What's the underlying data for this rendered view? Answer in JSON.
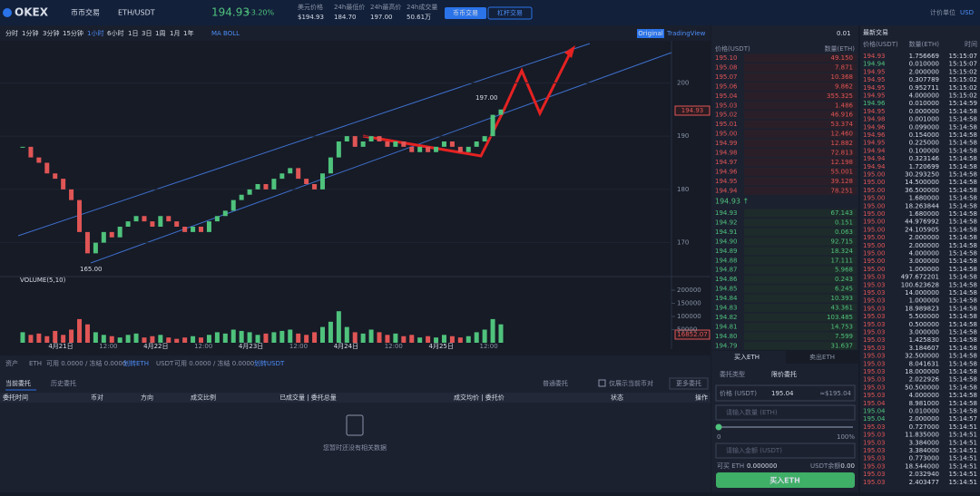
{
  "header": {
    "logo": "OKEX",
    "market_type": "币币交易",
    "pair": "ETH/USDT",
    "last_price": "194.93",
    "change": "+3.20%",
    "stats": [
      {
        "label": "美元价格",
        "value": "$194.93"
      },
      {
        "label": "24h最低价",
        "value": "184.70"
      },
      {
        "label": "24h最高价",
        "value": "197.00"
      },
      {
        "label": "24h成交量",
        "value": "50.61万"
      }
    ],
    "tabs": [
      "币币交易",
      "杠杆交易"
    ],
    "unit_label": "计价单位",
    "unit": "USD"
  },
  "toolbar": {
    "periods": [
      "分时",
      "1分钟",
      "3分钟",
      "15分钟",
      "1小时",
      "6小时",
      "1日",
      "3日",
      "1周",
      "1月",
      "1年"
    ],
    "indicators": "MA BOLL",
    "views": [
      "Original",
      "TradingView"
    ]
  },
  "chart_data": {
    "type": "candlestick",
    "closes": [
      188,
      186,
      185,
      183,
      182,
      180,
      178,
      172,
      168,
      170,
      172,
      171,
      173,
      174,
      175,
      174,
      173,
      175,
      174,
      173,
      172,
      173,
      172,
      174,
      175,
      176,
      178,
      179,
      180,
      181,
      180,
      182,
      183,
      184,
      182,
      181,
      180,
      183,
      186,
      189,
      190,
      188,
      189,
      190,
      189,
      188,
      189,
      188,
      187,
      188,
      187,
      188,
      189,
      188,
      187,
      188,
      189,
      190,
      194,
      195
    ],
    "volumes": [
      40000,
      30000,
      35000,
      25000,
      45000,
      30000,
      50000,
      90000,
      70000,
      40000,
      30000,
      25000,
      20000,
      30000,
      35000,
      20000,
      25000,
      30000,
      20000,
      15000,
      20000,
      25000,
      20000,
      30000,
      40000,
      35000,
      50000,
      45000,
      40000,
      30000,
      35000,
      40000,
      45000,
      50000,
      35000,
      30000,
      40000,
      60000,
      80000,
      120000,
      60000,
      40000,
      35000,
      50000,
      40000,
      30000,
      35000,
      25000,
      30000,
      20000,
      25000,
      20000,
      30000,
      25000,
      20000,
      25000,
      40000,
      50000,
      90000,
      70000
    ],
    "up_color": "#4fc27c",
    "down_color": "#e05555",
    "ylim": [
      165,
      197
    ],
    "yticks": [
      170,
      180,
      190,
      200
    ],
    "vol_label": "VOLUME(5,10)",
    "vol_ylim": [
      0,
      200000
    ],
    "vol_yticks": [
      50000,
      100000,
      150000,
      200000
    ],
    "x_labels": [
      "4月21日",
      "12:00",
      "4月22日",
      "12:00",
      "4月23日",
      "12:00",
      "4月24日",
      "12:00",
      "4月25日",
      "12:00"
    ],
    "high_label": "197.00",
    "low_label": "165.00",
    "price_tag": "194.93",
    "vol_tag": "16852.07"
  },
  "order_book": {
    "precision": "0.01",
    "headers": [
      "价格(USDT)",
      "数量(ETH)"
    ],
    "asks": [
      [
        "195.10",
        "49.150"
      ],
      [
        "195.08",
        "7.871"
      ],
      [
        "195.07",
        "10.368"
      ],
      [
        "195.06",
        "9.862"
      ],
      [
        "195.04",
        "355.325"
      ],
      [
        "195.03",
        "1.486"
      ],
      [
        "195.02",
        "46.916"
      ],
      [
        "195.01",
        "53.374"
      ],
      [
        "195.00",
        "12.460"
      ],
      [
        "194.99",
        "12.882"
      ],
      [
        "194.98",
        "72.813"
      ],
      [
        "194.97",
        "12.198"
      ],
      [
        "194.96",
        "55.001"
      ],
      [
        "194.95",
        "39.128"
      ],
      [
        "194.94",
        "78.251"
      ]
    ],
    "mid": "194.93 ↑",
    "bids": [
      [
        "194.93",
        "67.143"
      ],
      [
        "194.92",
        "0.151"
      ],
      [
        "194.91",
        "0.063"
      ],
      [
        "194.90",
        "92.715"
      ],
      [
        "194.89",
        "18.324"
      ],
      [
        "194.88",
        "17.111"
      ],
      [
        "194.87",
        "5.968"
      ],
      [
        "194.86",
        "0.243"
      ],
      [
        "194.85",
        "6.245"
      ],
      [
        "194.84",
        "10.393"
      ],
      [
        "194.83",
        "43.361"
      ],
      [
        "194.82",
        "103.485"
      ],
      [
        "194.81",
        "14.753"
      ],
      [
        "194.80",
        "7.599"
      ],
      [
        "194.79",
        "31.637"
      ]
    ]
  },
  "trades": {
    "title": "最新交易",
    "headers": [
      "价格(USDT)",
      "数量(ETH)",
      "时间"
    ],
    "rows": [
      [
        "194.93",
        "1.756669",
        "15:15:07",
        "#e05555"
      ],
      [
        "194.94",
        "0.010000",
        "15:15:07",
        "#4fc27c"
      ],
      [
        "194.95",
        "2.000000",
        "15:15:02",
        "#e05555"
      ],
      [
        "194.95",
        "0.307789",
        "15:15:02",
        "#e05555"
      ],
      [
        "194.95",
        "0.952711",
        "15:15:02",
        "#e05555"
      ],
      [
        "194.95",
        "4.000000",
        "15:15:02",
        "#e05555"
      ],
      [
        "194.96",
        "0.010000",
        "15:14:59",
        "#4fc27c"
      ],
      [
        "194.95",
        "0.000000",
        "15:14:58",
        "#e05555"
      ],
      [
        "194.98",
        "0.001000",
        "15:14:58",
        "#e05555"
      ],
      [
        "194.96",
        "0.099000",
        "15:14:58",
        "#e05555"
      ],
      [
        "194.96",
        "0.154000",
        "15:14:58",
        "#e05555"
      ],
      [
        "194.95",
        "0.225000",
        "15:14:58",
        "#e05555"
      ],
      [
        "194.94",
        "0.100000",
        "15:14:58",
        "#e05555"
      ],
      [
        "194.94",
        "0.323146",
        "15:14:58",
        "#e05555"
      ],
      [
        "194.94",
        "1.720699",
        "15:14:58",
        "#e05555"
      ],
      [
        "195.00",
        "30.293250",
        "15:14:58",
        "#e05555"
      ],
      [
        "195.00",
        "14.500000",
        "15:14:58",
        "#e05555"
      ],
      [
        "195.00",
        "36.500000",
        "15:14:58",
        "#e05555"
      ],
      [
        "195.00",
        "1.680000",
        "15:14:58",
        "#e05555"
      ],
      [
        "195.00",
        "18.263844",
        "15:14:58",
        "#e05555"
      ],
      [
        "195.00",
        "1.680000",
        "15:14:58",
        "#e05555"
      ],
      [
        "195.00",
        "44.976992",
        "15:14:58",
        "#e05555"
      ],
      [
        "195.00",
        "24.105905",
        "15:14:58",
        "#e05555"
      ],
      [
        "195.00",
        "2.000000",
        "15:14:58",
        "#e05555"
      ],
      [
        "195.00",
        "2.000000",
        "15:14:58",
        "#e05555"
      ],
      [
        "195.00",
        "4.000000",
        "15:14:58",
        "#e05555"
      ],
      [
        "195.00",
        "3.000000",
        "15:14:58",
        "#e05555"
      ],
      [
        "195.00",
        "1.000000",
        "15:14:58",
        "#e05555"
      ],
      [
        "195.03",
        "497.672201",
        "15:14:58",
        "#e05555"
      ],
      [
        "195.03",
        "100.623628",
        "15:14:58",
        "#e05555"
      ],
      [
        "195.03",
        "14.000000",
        "15:14:58",
        "#e05555"
      ],
      [
        "195.03",
        "1.000000",
        "15:14:58",
        "#e05555"
      ],
      [
        "195.03",
        "18.989823",
        "15:14:58",
        "#e05555"
      ],
      [
        "195.03",
        "5.500000",
        "15:14:58",
        "#e05555"
      ],
      [
        "195.03",
        "0.500000",
        "15:14:58",
        "#e05555"
      ],
      [
        "195.03",
        "3.000000",
        "15:14:58",
        "#e05555"
      ],
      [
        "195.03",
        "1.425830",
        "15:14:58",
        "#e05555"
      ],
      [
        "195.03",
        "3.184607",
        "15:14:58",
        "#e05555"
      ],
      [
        "195.03",
        "32.500000",
        "15:14:58",
        "#e05555"
      ],
      [
        "195.03",
        "8.041631",
        "15:14:58",
        "#e05555"
      ],
      [
        "195.03",
        "18.000000",
        "15:14:58",
        "#e05555"
      ],
      [
        "195.03",
        "2.022926",
        "15:14:58",
        "#e05555"
      ],
      [
        "195.03",
        "50.500000",
        "15:14:58",
        "#e05555"
      ],
      [
        "195.03",
        "4.000000",
        "15:14:58",
        "#e05555"
      ],
      [
        "195.04",
        "8.981000",
        "15:14:58",
        "#e05555"
      ],
      [
        "195.04",
        "0.010000",
        "15:14:58",
        "#4fc27c"
      ],
      [
        "195.04",
        "2.000000",
        "15:14:57",
        "#4fc27c"
      ],
      [
        "195.03",
        "0.727000",
        "15:14:51",
        "#e05555"
      ],
      [
        "195.03",
        "11.835000",
        "15:14:51",
        "#e05555"
      ],
      [
        "195.03",
        "3.384000",
        "15:14:51",
        "#e05555"
      ],
      [
        "195.03",
        "3.384000",
        "15:14:51",
        "#e05555"
      ],
      [
        "195.03",
        "0.773000",
        "15:14:51",
        "#e05555"
      ],
      [
        "195.03",
        "18.544000",
        "15:14:51",
        "#e05555"
      ],
      [
        "195.03",
        "2.032940",
        "15:14:51",
        "#e05555"
      ],
      [
        "195.03",
        "2.403477",
        "15:14:51",
        "#e05555"
      ]
    ]
  },
  "assets": [
    "资产",
    "ETH",
    "可用 0.0000 / 冻结 0.0000",
    "划转ETH",
    "USDT",
    "可用 0.0000 / 冻结 0.0000",
    "划转USDT"
  ],
  "orders": {
    "tabs": [
      "当前委托",
      "历史委托"
    ],
    "filter": "普通委托",
    "only_current": "仅展示当前币对",
    "more": "更多委托",
    "columns": [
      "委托时间",
      "币对",
      "方向",
      "成交比例",
      "已成交量 | 委托总量",
      "成交均价 | 委托价",
      "状态",
      "操作"
    ],
    "empty": "您暂时还没有相关数据"
  },
  "form": {
    "tabs": [
      "买入ETH",
      "卖出ETH"
    ],
    "type_label": "委托类型",
    "type": "限价委托",
    "price_label": "价格 (USDT)",
    "price": "195.04",
    "price_approx": "≈$195.04",
    "qty_placeholder": "请输入数量 (ETH)",
    "slider_min": "0",
    "slider_max": "100%",
    "amount_placeholder": "请输入金额 (USDT)",
    "avail_label": "可买 ETH",
    "avail": "0.000000",
    "balance_label": "USDT余额",
    "balance": "0.00",
    "submit": "买入ETH"
  }
}
